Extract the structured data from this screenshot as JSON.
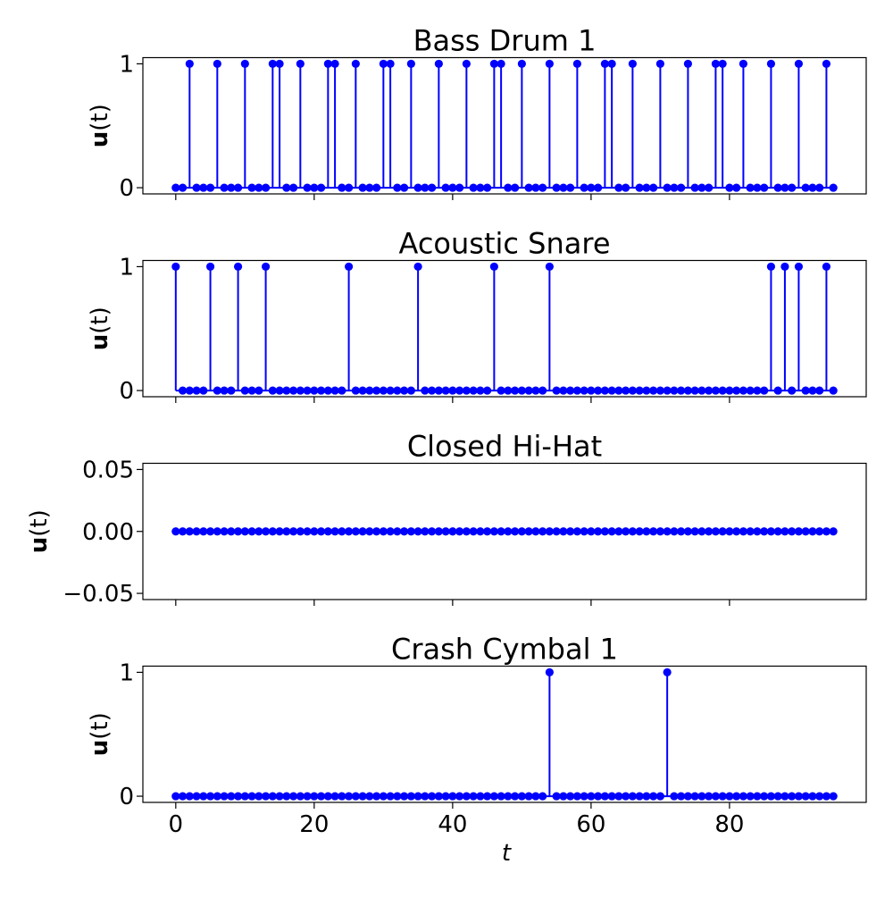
{
  "colors": {
    "series": "#0000ff",
    "axes": "#000000",
    "background": "#ffffff"
  },
  "x_axis": {
    "label": "t",
    "ticks": [
      0,
      20,
      40,
      60,
      80
    ],
    "tick_labels": [
      "0",
      "20",
      "40",
      "60",
      "80"
    ],
    "range": [
      -4.75,
      99.75
    ]
  },
  "chart_data": [
    {
      "type": "stem",
      "title": "Bass Drum 1",
      "ylabel_bold": "u",
      "ylabel_rest": "(t)",
      "ylim": [
        -0.05,
        1.05
      ],
      "yticks": [
        0,
        1
      ],
      "ytick_labels": [
        "0",
        "1"
      ],
      "grid": false,
      "x_start": 0,
      "values": [
        0,
        0,
        1,
        0,
        0,
        0,
        1,
        0,
        0,
        0,
        1,
        0,
        0,
        0,
        1,
        1,
        0,
        0,
        1,
        0,
        0,
        0,
        1,
        1,
        0,
        0,
        1,
        0,
        0,
        0,
        1,
        1,
        0,
        0,
        1,
        0,
        0,
        0,
        1,
        0,
        0,
        0,
        1,
        0,
        0,
        0,
        1,
        1,
        0,
        0,
        1,
        0,
        0,
        0,
        1,
        0,
        0,
        0,
        1,
        0,
        0,
        0,
        1,
        1,
        0,
        0,
        1,
        0,
        0,
        0,
        1,
        0,
        0,
        0,
        1,
        0,
        0,
        0,
        1,
        1,
        0,
        0,
        1,
        0,
        0,
        0,
        1,
        0,
        0,
        0,
        1,
        0,
        0,
        0,
        1,
        0
      ]
    },
    {
      "type": "stem",
      "title": "Acoustic Snare",
      "ylabel_bold": "u",
      "ylabel_rest": "(t)",
      "ylim": [
        -0.05,
        1.05
      ],
      "yticks": [
        0,
        1
      ],
      "ytick_labels": [
        "0",
        "1"
      ],
      "grid": false,
      "x_start": 0,
      "values": [
        1,
        0,
        0,
        0,
        0,
        1,
        0,
        0,
        0,
        1,
        0,
        0,
        0,
        1,
        0,
        0,
        0,
        0,
        0,
        0,
        0,
        0,
        0,
        0,
        0,
        1,
        0,
        0,
        0,
        0,
        0,
        0,
        0,
        0,
        0,
        1,
        0,
        0,
        0,
        0,
        0,
        0,
        0,
        0,
        0,
        0,
        1,
        0,
        0,
        0,
        0,
        0,
        0,
        0,
        1,
        0,
        0,
        0,
        0,
        0,
        0,
        0,
        0,
        0,
        0,
        0,
        0,
        0,
        0,
        0,
        0,
        0,
        0,
        0,
        0,
        0,
        0,
        0,
        0,
        0,
        0,
        0,
        0,
        0,
        0,
        0,
        1,
        0,
        1,
        0,
        1,
        0,
        0,
        0,
        1,
        0
      ]
    },
    {
      "type": "stem",
      "title": "Closed Hi-Hat",
      "ylabel_bold": "u",
      "ylabel_rest": "(t)",
      "ylim": [
        -0.055,
        0.055
      ],
      "yticks": [
        0.05,
        0.0,
        -0.05
      ],
      "ytick_labels": [
        "0.05",
        "0.00",
        "−0.05"
      ],
      "grid": false,
      "x_start": 0,
      "values": [
        0,
        0,
        0,
        0,
        0,
        0,
        0,
        0,
        0,
        0,
        0,
        0,
        0,
        0,
        0,
        0,
        0,
        0,
        0,
        0,
        0,
        0,
        0,
        0,
        0,
        0,
        0,
        0,
        0,
        0,
        0,
        0,
        0,
        0,
        0,
        0,
        0,
        0,
        0,
        0,
        0,
        0,
        0,
        0,
        0,
        0,
        0,
        0,
        0,
        0,
        0,
        0,
        0,
        0,
        0,
        0,
        0,
        0,
        0,
        0,
        0,
        0,
        0,
        0,
        0,
        0,
        0,
        0,
        0,
        0,
        0,
        0,
        0,
        0,
        0,
        0,
        0,
        0,
        0,
        0,
        0,
        0,
        0,
        0,
        0,
        0,
        0,
        0,
        0,
        0,
        0,
        0,
        0,
        0,
        0,
        0
      ]
    },
    {
      "type": "stem",
      "title": "Crash Cymbal 1",
      "ylabel_bold": "u",
      "ylabel_rest": "(t)",
      "ylim": [
        -0.05,
        1.05
      ],
      "yticks": [
        0,
        1
      ],
      "ytick_labels": [
        "0",
        "1"
      ],
      "grid": false,
      "x_start": 0,
      "values": [
        0,
        0,
        0,
        0,
        0,
        0,
        0,
        0,
        0,
        0,
        0,
        0,
        0,
        0,
        0,
        0,
        0,
        0,
        0,
        0,
        0,
        0,
        0,
        0,
        0,
        0,
        0,
        0,
        0,
        0,
        0,
        0,
        0,
        0,
        0,
        0,
        0,
        0,
        0,
        0,
        0,
        0,
        0,
        0,
        0,
        0,
        0,
        0,
        0,
        0,
        0,
        0,
        0,
        0,
        1,
        0,
        0,
        0,
        0,
        0,
        0,
        0,
        0,
        0,
        0,
        0,
        0,
        0,
        0,
        0,
        0,
        1,
        0,
        0,
        0,
        0,
        0,
        0,
        0,
        0,
        0,
        0,
        0,
        0,
        0,
        0,
        0,
        0,
        0,
        0,
        0,
        0,
        0,
        0,
        0,
        0
      ]
    }
  ]
}
